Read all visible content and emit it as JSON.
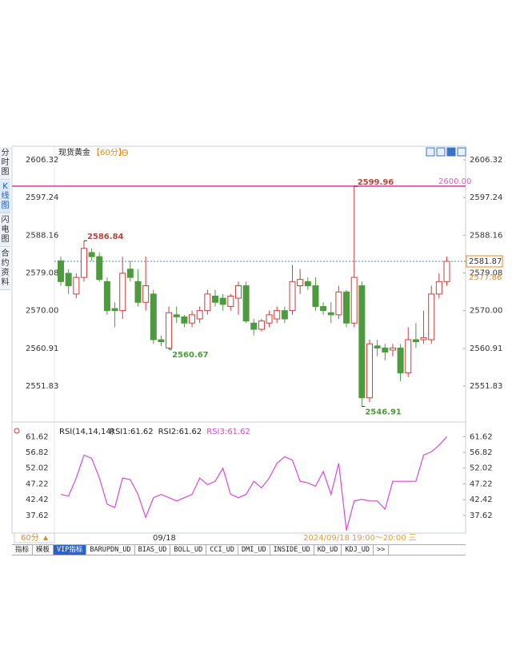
{
  "sidebar": [
    "分时图",
    "K线图",
    "闪电图",
    "合约资料"
  ],
  "header": {
    "title": "现货黄金",
    "period": "【60分】"
  },
  "chart_data": [
    {
      "type": "candlestick",
      "open": [
        2582,
        2579,
        2574,
        2578,
        2584,
        2583,
        2577,
        2570.5,
        2570,
        2580,
        2577,
        2572,
        2574,
        2563,
        2561,
        2569,
        2568.5,
        2567,
        2568,
        2570,
        2573.5,
        2573,
        2571,
        2573,
        2576,
        2567,
        2565.5,
        2567,
        2568,
        2570,
        2570,
        2576,
        2577,
        2576,
        2571,
        2569.5,
        2569,
        2574.5,
        2567,
        2576,
        2549,
        2561.5,
        2561,
        2560.5,
        2561,
        2555,
        2563,
        2563,
        2563,
        2574,
        2577
      ],
      "high": [
        2583,
        2580,
        2579,
        2586.84,
        2585,
        2584,
        2578,
        2572,
        2583,
        2582,
        2580,
        2583,
        2575,
        2564,
        2571,
        2571,
        2569,
        2570,
        2571,
        2575,
        2575,
        2574,
        2574,
        2577,
        2577,
        2568,
        2568,
        2570,
        2571,
        2571,
        2581,
        2580,
        2578,
        2578,
        2572,
        2572,
        2576,
        2575,
        2599.96,
        2577,
        2563,
        2563,
        2562,
        2562,
        2562,
        2566,
        2567,
        2570,
        2576,
        2579,
        2583
      ],
      "low": [
        2576,
        2574,
        2573,
        2577,
        2582,
        2577,
        2569,
        2566,
        2568,
        2577,
        2571,
        2570,
        2562,
        2561.5,
        2560.67,
        2567,
        2566,
        2566,
        2567,
        2569,
        2571,
        2570,
        2570,
        2569,
        2567,
        2564,
        2565,
        2566,
        2567,
        2567,
        2569,
        2574,
        2575,
        2570,
        2569,
        2567,
        2568,
        2566,
        2566,
        2546.91,
        2548,
        2559,
        2558,
        2559,
        2553,
        2554,
        2561,
        2562,
        2562,
        2573,
        2576
      ],
      "close": [
        2577,
        2576,
        2578,
        2585,
        2583,
        2577.5,
        2570,
        2570,
        2579,
        2578,
        2572,
        2576,
        2563,
        2562.5,
        2569.5,
        2568.5,
        2567,
        2569,
        2570,
        2574,
        2572,
        2571.5,
        2573.5,
        2576,
        2567.5,
        2565.5,
        2567.5,
        2569,
        2570,
        2568,
        2577,
        2577.5,
        2576,
        2571,
        2570,
        2569,
        2574.5,
        2567,
        2578,
        2549,
        2562,
        2561,
        2560,
        2561,
        2555,
        2563,
        2562.5,
        2563.5,
        2574,
        2577,
        2581.87
      ],
      "up_color": "#d23c3c",
      "down_color": "#4e9a3e",
      "ylim": [
        2543.36,
        2609.6
      ],
      "yticks": [
        2606.32,
        2597.24,
        2588.16,
        2579.08,
        {
          "value": 2570,
          "label": "2570.00"
        },
        2560.91,
        2551.83
      ],
      "annotations": [
        2586.84,
        2560.67,
        2599.96,
        2546.91
      ],
      "hline": {
        "value": 2600,
        "label": "2600.00",
        "color": "#e060b0"
      },
      "reference_price": 2577.86
    },
    {
      "type": "line",
      "title": "RSI(14,14,14)",
      "legend": [
        "RSI1:61.62",
        "RSI2:61.62",
        "RSI3:61.62"
      ],
      "color": "#d64ad6",
      "values": [
        44,
        43.5,
        49,
        56,
        55,
        49,
        41,
        40,
        49,
        48.5,
        44,
        37,
        43,
        44,
        43,
        42,
        43,
        44,
        49,
        47,
        48,
        52,
        44,
        43,
        44,
        48,
        46,
        49,
        53.5,
        55.5,
        54.5,
        48,
        47.5,
        46.5,
        51,
        44,
        53.5,
        33,
        42,
        42.5,
        42,
        42,
        39.5,
        48,
        48,
        48,
        48,
        56,
        57,
        59,
        61.62
      ],
      "categories": [
        null,
        null,
        null,
        null,
        null,
        null,
        null,
        null,
        null,
        null,
        null,
        null,
        null,
        "09/18",
        null,
        null,
        null,
        null,
        null,
        null,
        null,
        null,
        null,
        null,
        null,
        null,
        null,
        null,
        null,
        null,
        null,
        null,
        null,
        null,
        null,
        null,
        null,
        null,
        null,
        null,
        null,
        null,
        null,
        null,
        null,
        null,
        null,
        null,
        null,
        null,
        null
      ],
      "ylim": [
        32.2,
        65.6
      ],
      "yticks": [
        61.62,
        56.82,
        52.02,
        47.22,
        42.42,
        37.62
      ]
    }
  ],
  "footer": {
    "period": "60分",
    "cursor_time": "2024/09/18 19:00～20:00 三",
    "tabs": [
      "指标",
      "模板",
      "VIP指标",
      "BARUPDN_UD",
      "BIAS_UD",
      "BOLL_UD",
      "CCI_UD",
      "DMI_UD",
      "INSIDE_UD",
      "KD_UD",
      "KDJ_UD",
      ">>"
    ]
  }
}
